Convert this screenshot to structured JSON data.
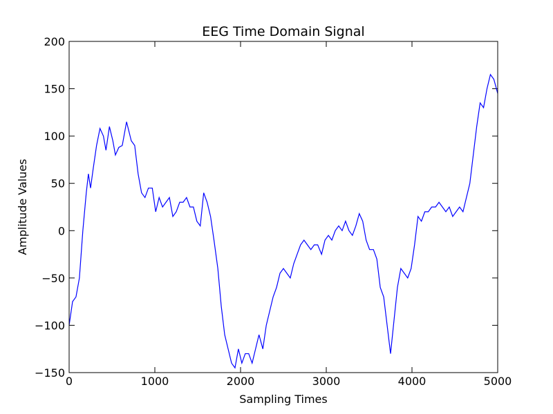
{
  "chart_data": {
    "type": "line",
    "title": "EEG Time Domain Signal",
    "x_label": "Sampling Times",
    "y_label": "Amplitude Values",
    "x": [
      0,
      40,
      80,
      120,
      160,
      200,
      225,
      250,
      280,
      320,
      360,
      400,
      430,
      470,
      510,
      540,
      580,
      620,
      670,
      725,
      765,
      805,
      845,
      885,
      925,
      970,
      1010,
      1050,
      1090,
      1130,
      1170,
      1210,
      1250,
      1290,
      1330,
      1370,
      1410,
      1450,
      1490,
      1530,
      1570,
      1610,
      1650,
      1690,
      1735,
      1775,
      1815,
      1855,
      1895,
      1935,
      1975,
      2015,
      2055,
      2095,
      2135,
      2175,
      2215,
      2260,
      2300,
      2340,
      2380,
      2420,
      2460,
      2500,
      2540,
      2580,
      2620,
      2660,
      2700,
      2740,
      2780,
      2820,
      2860,
      2900,
      2945,
      2985,
      3025,
      3065,
      3105,
      3145,
      3185,
      3225,
      3265,
      3305,
      3345,
      3385,
      3425,
      3465,
      3505,
      3550,
      3590,
      3630,
      3670,
      3710,
      3750,
      3790,
      3830,
      3870,
      3910,
      3950,
      3990,
      4030,
      4070,
      4110,
      4150,
      4190,
      4230,
      4275,
      4315,
      4355,
      4395,
      4435,
      4475,
      4515,
      4555,
      4595,
      4635,
      4675,
      4715,
      4755,
      4795,
      4835,
      4875,
      4915,
      4955,
      5000
    ],
    "series": [
      {
        "name": "EEG",
        "color": "#0000ff",
        "values": [
          -100,
          -75,
          -70,
          -50,
          0,
          40,
          60,
          45,
          65,
          90,
          108,
          100,
          85,
          110,
          95,
          80,
          88,
          90,
          115,
          95,
          90,
          60,
          40,
          35,
          45,
          45,
          20,
          35,
          25,
          30,
          35,
          15,
          20,
          30,
          30,
          35,
          25,
          25,
          10,
          5,
          40,
          30,
          15,
          -10,
          -40,
          -80,
          -110,
          -125,
          -140,
          -145,
          -125,
          -140,
          -130,
          -130,
          -140,
          -125,
          -110,
          -125,
          -100,
          -85,
          -70,
          -60,
          -45,
          -40,
          -45,
          -50,
          -35,
          -25,
          -15,
          -10,
          -15,
          -20,
          -15,
          -15,
          -25,
          -10,
          -5,
          -10,
          0,
          5,
          0,
          10,
          0,
          -5,
          5,
          18,
          10,
          -10,
          -20,
          -20,
          -30,
          -60,
          -70,
          -100,
          -130,
          -95,
          -60,
          -40,
          -45,
          -50,
          -40,
          -15,
          15,
          10,
          20,
          20,
          25,
          25,
          30,
          25,
          20,
          25,
          15,
          20,
          25,
          20,
          35,
          50,
          80,
          110,
          135,
          130,
          150,
          165,
          160,
          145
        ]
      }
    ],
    "xlim": [
      0,
      5000
    ],
    "xticks": [
      0,
      1000,
      2000,
      3000,
      4000,
      5000
    ],
    "ylim": [
      -150,
      200
    ],
    "yticks": [
      {
        "value": -150,
        "label": "−150"
      },
      {
        "value": -100,
        "label": "−100"
      },
      {
        "value": -50,
        "label": "−50"
      },
      0,
      50,
      100,
      150,
      200
    ],
    "grid": false
  }
}
